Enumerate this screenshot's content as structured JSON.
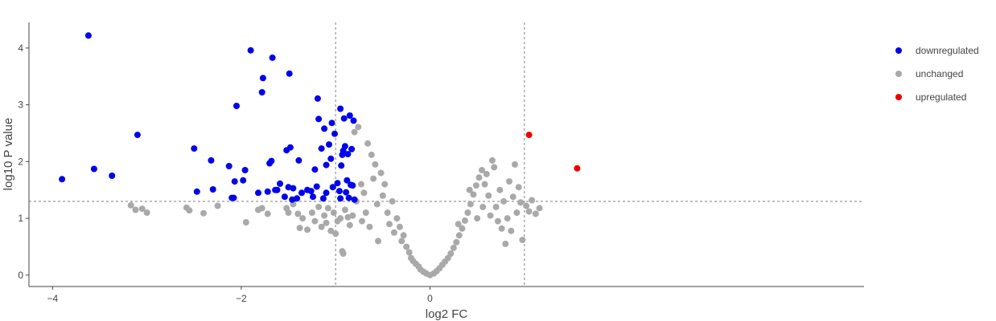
{
  "chart_data": {
    "type": "scatter",
    "title": "",
    "xlabel": "log2 FC",
    "ylabel": "log10 P value",
    "xlim": [
      -4.25,
      4.6
    ],
    "ylim": [
      -0.2,
      4.45
    ],
    "x_ticks": [
      -4,
      -2,
      0
    ],
    "x_tick_labels": [
      "−4",
      "−2",
      "0"
    ],
    "y_ticks": [
      0,
      1,
      2,
      3,
      4
    ],
    "y_tick_labels": [
      "0",
      "1",
      "2",
      "3",
      "4"
    ],
    "grid": false,
    "legend_position": "right",
    "thresholds": {
      "x": [
        -1,
        1
      ],
      "y": 1.3
    },
    "series": [
      {
        "name": "downregulated",
        "color": "#0000ee",
        "points": [
          [
            -3.62,
            4.22
          ],
          [
            -3.9,
            1.69
          ],
          [
            -3.56,
            1.87
          ],
          [
            -3.37,
            1.75
          ],
          [
            -3.1,
            2.47
          ],
          [
            -2.5,
            2.23
          ],
          [
            -2.47,
            1.47
          ],
          [
            -2.32,
            2.02
          ],
          [
            -2.3,
            1.51
          ],
          [
            -2.13,
            1.92
          ],
          [
            -2.1,
            1.36
          ],
          [
            -2.08,
            1.36
          ],
          [
            -2.07,
            1.65
          ],
          [
            -2.05,
            2.98
          ],
          [
            -1.98,
            1.67
          ],
          [
            -1.96,
            1.85
          ],
          [
            -1.9,
            3.96
          ],
          [
            -1.82,
            1.45
          ],
          [
            -1.78,
            3.22
          ],
          [
            -1.77,
            3.47
          ],
          [
            -1.72,
            1.47
          ],
          [
            -1.7,
            1.97
          ],
          [
            -1.68,
            2.01
          ],
          [
            -1.67,
            3.83
          ],
          [
            -1.64,
            1.5
          ],
          [
            -1.62,
            1.5
          ],
          [
            -1.59,
            1.61
          ],
          [
            -1.54,
            1.38
          ],
          [
            -1.52,
            2.2
          ],
          [
            -1.5,
            1.55
          ],
          [
            -1.49,
            3.55
          ],
          [
            -1.48,
            2.25
          ],
          [
            -1.46,
            1.33
          ],
          [
            -1.45,
            1.53
          ],
          [
            -1.41,
            1.35
          ],
          [
            -1.39,
            2.02
          ],
          [
            -1.36,
            1.45
          ],
          [
            -1.3,
            1.5
          ],
          [
            -1.26,
            1.48
          ],
          [
            -1.24,
            1.38
          ],
          [
            -1.22,
            1.86
          ],
          [
            -1.2,
            1.56
          ],
          [
            -1.19,
            3.11
          ],
          [
            -1.18,
            2.75
          ],
          [
            -1.15,
            2.23
          ],
          [
            -1.13,
            1.35
          ],
          [
            -1.12,
            2.58
          ],
          [
            -1.1,
            1.94
          ],
          [
            -1.1,
            1.45
          ],
          [
            -1.07,
            2.3
          ],
          [
            -1.05,
            2.05
          ],
          [
            -1.04,
            2.68
          ],
          [
            -1.03,
            1.55
          ],
          [
            -1.01,
            2.49
          ],
          [
            -0.98,
            1.62
          ],
          [
            -0.96,
            1.48
          ],
          [
            -0.95,
            1.35
          ],
          [
            -0.95,
            2.93
          ],
          [
            -0.94,
            1.93
          ],
          [
            -0.93,
            2.12
          ],
          [
            -0.92,
            2.19
          ],
          [
            -0.91,
            2.76
          ],
          [
            -0.9,
            2.27
          ],
          [
            -0.89,
            1.46
          ],
          [
            -0.88,
            1.67
          ],
          [
            -0.87,
            2.13
          ],
          [
            -0.86,
            1.36
          ],
          [
            -0.85,
            2.81
          ],
          [
            -0.84,
            1.59
          ],
          [
            -0.83,
            2.22
          ],
          [
            -0.82,
            1.58
          ],
          [
            -0.81,
            2.72
          ],
          [
            -0.8,
            1.33
          ]
        ]
      },
      {
        "name": "unchanged",
        "color": "#a9a9a9",
        "points": [
          [
            -3.17,
            1.23
          ],
          [
            -3.12,
            1.15
          ],
          [
            -3.05,
            1.17
          ],
          [
            -3.0,
            1.1
          ],
          [
            -2.58,
            1.19
          ],
          [
            -2.55,
            1.14
          ],
          [
            -2.4,
            1.09
          ],
          [
            -2.25,
            1.22
          ],
          [
            -1.95,
            0.93
          ],
          [
            -1.82,
            1.15
          ],
          [
            -1.78,
            1.18
          ],
          [
            -1.72,
            1.08
          ],
          [
            -1.52,
            1.18
          ],
          [
            -1.5,
            1.1
          ],
          [
            -1.45,
            1.25
          ],
          [
            -1.4,
            1.08
          ],
          [
            -1.38,
            0.83
          ],
          [
            -1.35,
            1.0
          ],
          [
            -1.3,
            0.8
          ],
          [
            -1.25,
            1.1
          ],
          [
            -1.22,
            0.95
          ],
          [
            -1.18,
            1.2
          ],
          [
            -1.15,
            0.85
          ],
          [
            -1.12,
            1.05
          ],
          [
            -1.1,
            0.92
          ],
          [
            -1.08,
            1.18
          ],
          [
            -1.05,
            0.78
          ],
          [
            -1.02,
            1.1
          ],
          [
            -1.0,
            0.73
          ],
          [
            -0.98,
            0.95
          ],
          [
            -0.95,
            1.0
          ],
          [
            -0.93,
            0.42
          ],
          [
            -0.92,
            0.38
          ],
          [
            -0.9,
            1.15
          ],
          [
            -0.87,
            1.02
          ],
          [
            -0.85,
            0.88
          ],
          [
            -0.8,
            2.52
          ],
          [
            -0.76,
            2.61
          ],
          [
            -0.73,
            1.6
          ],
          [
            -0.7,
            1.45
          ],
          [
            -0.66,
            2.32
          ],
          [
            -0.62,
            2.12
          ],
          [
            -0.58,
            1.95
          ],
          [
            -0.56,
            1.25
          ],
          [
            -0.55,
            0.6
          ],
          [
            -0.52,
            1.8
          ],
          [
            -0.5,
            1.4
          ],
          [
            -0.48,
            1.6
          ],
          [
            -0.45,
            1.1
          ],
          [
            -0.43,
            0.9
          ],
          [
            -0.4,
            1.3
          ],
          [
            -0.38,
            0.75
          ],
          [
            -0.35,
            1.0
          ],
          [
            -0.32,
            0.85
          ],
          [
            -0.3,
            0.6
          ],
          [
            -0.28,
            0.7
          ],
          [
            -0.25,
            0.5
          ],
          [
            -0.22,
            0.4
          ],
          [
            -0.2,
            0.3
          ],
          [
            -0.18,
            0.25
          ],
          [
            -0.15,
            0.2
          ],
          [
            -0.12,
            0.15
          ],
          [
            -0.1,
            0.1
          ],
          [
            -0.07,
            0.06
          ],
          [
            -0.04,
            0.03
          ],
          [
            0.0,
            0.0
          ],
          [
            0.04,
            0.03
          ],
          [
            0.07,
            0.07
          ],
          [
            0.1,
            0.12
          ],
          [
            0.13,
            0.18
          ],
          [
            0.16,
            0.24
          ],
          [
            0.19,
            0.3
          ],
          [
            0.22,
            0.38
          ],
          [
            0.25,
            0.48
          ],
          [
            0.28,
            0.58
          ],
          [
            0.31,
            0.7
          ],
          [
            0.34,
            0.82
          ],
          [
            0.37,
            0.96
          ],
          [
            0.4,
            1.1
          ],
          [
            0.43,
            1.25
          ],
          [
            0.46,
            1.42
          ],
          [
            0.49,
            1.58
          ],
          [
            0.52,
            1.72
          ],
          [
            0.55,
            1.85
          ],
          [
            0.58,
            1.6
          ],
          [
            0.6,
            1.78
          ],
          [
            0.62,
            1.4
          ],
          [
            0.64,
            1.05
          ],
          [
            0.66,
            2.02
          ],
          [
            0.68,
            1.9
          ],
          [
            0.7,
            1.2
          ],
          [
            0.72,
            0.95
          ],
          [
            0.74,
            1.5
          ],
          [
            0.76,
            0.82
          ],
          [
            0.78,
            1.3
          ],
          [
            0.8,
            0.55
          ],
          [
            0.82,
            1.0
          ],
          [
            0.84,
            1.65
          ],
          [
            0.86,
            0.78
          ],
          [
            0.88,
            1.38
          ],
          [
            0.9,
            1.95
          ],
          [
            0.92,
            1.1
          ],
          [
            0.94,
            1.55
          ],
          [
            0.96,
            1.28
          ],
          [
            0.98,
            0.62
          ],
          [
            1.02,
            1.22
          ],
          [
            1.05,
            1.12
          ],
          [
            1.08,
            1.32
          ],
          [
            1.12,
            1.08
          ],
          [
            1.16,
            1.18
          ],
          [
            0.3,
            0.9
          ],
          [
            0.42,
            1.5
          ],
          [
            0.5,
            1.0
          ],
          [
            0.56,
            1.2
          ],
          [
            -0.6,
            1.7
          ],
          [
            -0.64,
            0.85
          ],
          [
            -0.68,
            1.1
          ],
          [
            -0.72,
            0.95
          ],
          [
            -0.78,
            1.3
          ],
          [
            -0.82,
            1.05
          ]
        ]
      },
      {
        "name": "upregulated",
        "color": "#ee0000",
        "points": [
          [
            1.05,
            2.47
          ],
          [
            1.56,
            1.88
          ]
        ]
      }
    ]
  }
}
